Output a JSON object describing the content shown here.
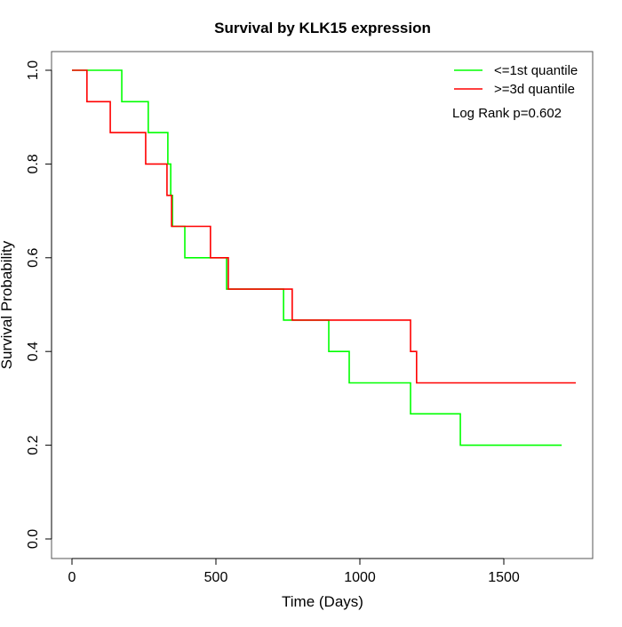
{
  "chart_data": {
    "type": "line",
    "subtype": "kaplan-meier step",
    "title": "Survival by KLK15 expression",
    "xlabel": "Time (Days)",
    "ylabel": "Survival Probability",
    "xlim": [
      0,
      1750
    ],
    "ylim": [
      0,
      1
    ],
    "xticks": [
      0,
      500,
      1000,
      1500
    ],
    "xtick_labels": [
      "0",
      "500",
      "1000",
      "1500"
    ],
    "yticks": [
      0,
      0.2,
      0.4,
      0.6,
      0.8,
      1.0
    ],
    "ytick_labels": [
      "0.0",
      "0.2",
      "0.4",
      "0.6",
      "0.8",
      "1.0"
    ],
    "grid": false,
    "legend_position": "top-right",
    "annotation": "Log Rank p=0.602",
    "series": [
      {
        "name": "<=1st quantile",
        "color": "#00ff00",
        "x": [
          0,
          173,
          265,
          333,
          343,
          349,
          392,
          537,
          735,
          892,
          963,
          1176,
          1349,
          1701
        ],
        "y": [
          1.0,
          0.933,
          0.867,
          0.8,
          0.733,
          0.667,
          0.6,
          0.533,
          0.467,
          0.4,
          0.333,
          0.267,
          0.2,
          0.2
        ]
      },
      {
        "name": ">=3d quantile",
        "color": "#ff0000",
        "x": [
          0,
          52,
          133,
          256,
          330,
          346,
          481,
          543,
          765,
          1176,
          1197,
          1750
        ],
        "y": [
          1.0,
          0.933,
          0.867,
          0.8,
          0.733,
          0.667,
          0.6,
          0.533,
          0.467,
          0.4,
          0.333,
          0.333
        ]
      }
    ]
  }
}
